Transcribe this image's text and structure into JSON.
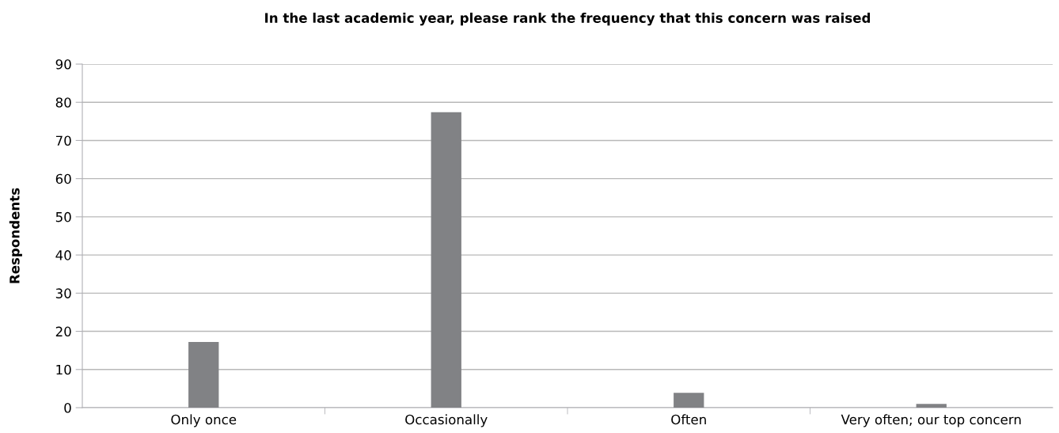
{
  "chart_data": {
    "type": "bar",
    "title": "In the last academic year, please rank the frequency that this concern was raised",
    "ylabel": "Respondents",
    "categories": [
      "Only once",
      "Occasionally",
      "Often",
      "Very often; our top concern"
    ],
    "values": [
      17.2,
      77.4,
      3.9,
      1.0
    ],
    "color": "#818285",
    "ylim": [
      0,
      90
    ],
    "yticks": [
      0,
      10,
      20,
      30,
      40,
      50,
      60,
      70,
      80,
      90
    ],
    "grid": "y",
    "legend": false
  }
}
